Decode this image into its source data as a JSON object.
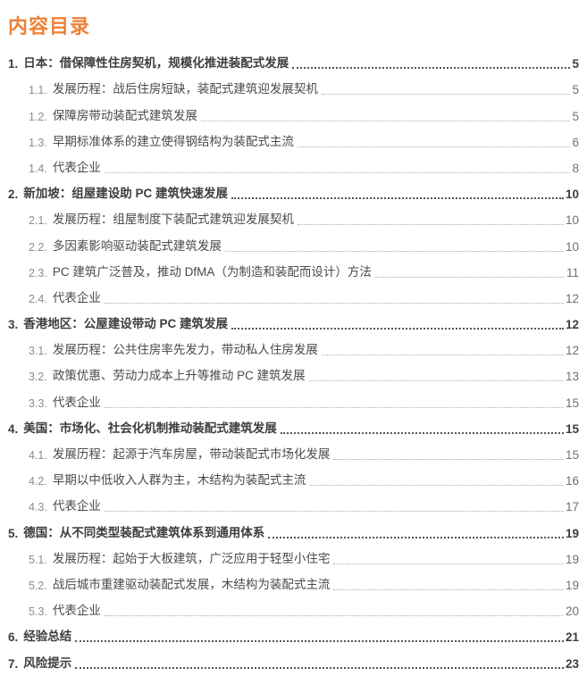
{
  "doc": {
    "title": "内容目录"
  },
  "colors": {
    "accent": "#EF8136",
    "level1_text": "#3d3d3d",
    "level2_text": "#4a4a4a",
    "page_number_gray": "#707070"
  },
  "toc": {
    "entries": [
      {
        "num": "1.",
        "title": "日本：借保障性住房契机，规模化推进装配式发展",
        "page": "5",
        "level": 1
      },
      {
        "num": "1.1.",
        "title": "发展历程：战后住房短缺，装配式建筑迎发展契机",
        "page": "5",
        "level": 2
      },
      {
        "num": "1.2.",
        "title": "保障房带动装配式建筑发展",
        "page": "5",
        "level": 2
      },
      {
        "num": "1.3.",
        "title": "早期标准体系的建立使得钢结构为装配式主流",
        "page": "6",
        "level": 2
      },
      {
        "num": "1.4.",
        "title": "代表企业",
        "page": "8",
        "level": 2
      },
      {
        "num": "2.",
        "title": "新加坡：组屋建设助 PC 建筑快速发展",
        "page": "10",
        "level": 1
      },
      {
        "num": "2.1.",
        "title": "发展历程：组屋制度下装配式建筑迎发展契机",
        "page": "10",
        "level": 2
      },
      {
        "num": "2.2.",
        "title": "多因素影响驱动装配式建筑发展",
        "page": "10",
        "level": 2
      },
      {
        "num": "2.3.",
        "title": "PC 建筑广泛普及，推动 DfMA（为制造和装配而设计）方法",
        "page": "11",
        "level": 2
      },
      {
        "num": "2.4.",
        "title": "代表企业",
        "page": "12",
        "level": 2
      },
      {
        "num": "3.",
        "title": "香港地区：公屋建设带动 PC 建筑发展",
        "page": "12",
        "level": 1
      },
      {
        "num": "3.1.",
        "title": "发展历程：公共住房率先发力，带动私人住房发展",
        "page": "12",
        "level": 2
      },
      {
        "num": "3.2.",
        "title": "政策优惠、劳动力成本上升等推动 PC 建筑发展",
        "page": "13",
        "level": 2
      },
      {
        "num": "3.3.",
        "title": "代表企业",
        "page": "15",
        "level": 2
      },
      {
        "num": "4.",
        "title": "美国：市场化、社会化机制推动装配式建筑发展",
        "page": "15",
        "level": 1
      },
      {
        "num": "4.1.",
        "title": "发展历程：起源于汽车房屋，带动装配式市场化发展",
        "page": "15",
        "level": 2
      },
      {
        "num": "4.2.",
        "title": "早期以中低收入人群为主，木结构为装配式主流",
        "page": "16",
        "level": 2
      },
      {
        "num": "4.3.",
        "title": "代表企业",
        "page": "17",
        "level": 2
      },
      {
        "num": "5.",
        "title": "德国：从不同类型装配式建筑体系到通用体系",
        "page": "19",
        "level": 1
      },
      {
        "num": "5.1.",
        "title": "发展历程：起始于大板建筑，广泛应用于轻型小住宅",
        "page": "19",
        "level": 2
      },
      {
        "num": "5.2.",
        "title": "战后城市重建驱动装配式发展，木结构为装配式主流",
        "page": "19",
        "level": 2
      },
      {
        "num": "5.3.",
        "title": "代表企业",
        "page": "20",
        "level": 2
      },
      {
        "num": "6.",
        "title": "经验总结",
        "page": "21",
        "level": 1
      },
      {
        "num": "7.",
        "title": "风险提示",
        "page": "23",
        "level": 1
      }
    ]
  }
}
